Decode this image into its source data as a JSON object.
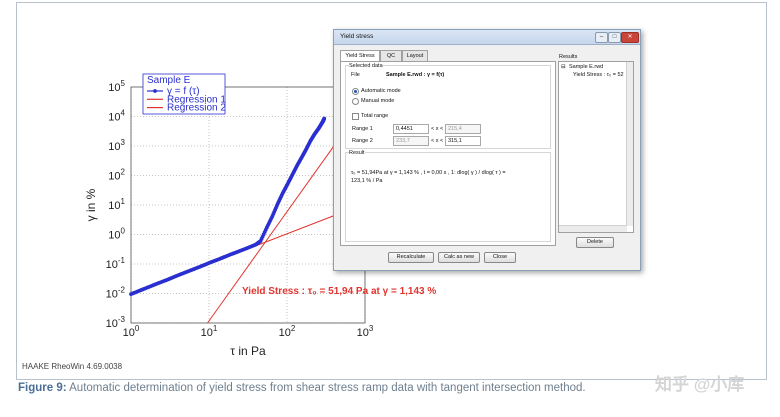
{
  "figure": {
    "caption_label": "Figure 9:",
    "caption_text": "Automatic determination of yield stress from shear stress ramp data with tangent intersection method.",
    "software": "HAAKE RheoWin 4.69.0038",
    "watermark": "知乎 @小库"
  },
  "chart_data": {
    "type": "line",
    "xlabel": "τ in Pa",
    "ylabel": "γ in %",
    "x_scale": "log",
    "y_scale": "log",
    "xlim": [
      1,
      1000
    ],
    "ylim": [
      0.001,
      100000
    ],
    "x_ticks": [
      {
        "value": 1,
        "base": "10",
        "exp": "0"
      },
      {
        "value": 10,
        "base": "10",
        "exp": "1"
      },
      {
        "value": 100,
        "base": "10",
        "exp": "2"
      },
      {
        "value": 1000,
        "base": "10",
        "exp": "3"
      }
    ],
    "y_ticks": [
      {
        "value": 0.001,
        "base": "10",
        "exp": "-3"
      },
      {
        "value": 0.01,
        "base": "10",
        "exp": "-2"
      },
      {
        "value": 0.1,
        "base": "10",
        "exp": "-1"
      },
      {
        "value": 1,
        "base": "10",
        "exp": "0"
      },
      {
        "value": 10,
        "base": "10",
        "exp": "1"
      },
      {
        "value": 100,
        "base": "10",
        "exp": "2"
      },
      {
        "value": 1000,
        "base": "10",
        "exp": "3"
      },
      {
        "value": 10000,
        "base": "10",
        "exp": "4"
      },
      {
        "value": 100000,
        "base": "10",
        "exp": "5"
      }
    ],
    "grid": true,
    "legend_title": "Sample E",
    "legend_position": "top-left",
    "series": [
      {
        "name": "γ = f (τ)",
        "color": "#2a2fd0",
        "marker": "circle",
        "x": [
          1.0,
          1.3,
          1.7,
          2.2,
          2.9,
          3.7,
          4.8,
          6.3,
          8.2,
          10.6,
          13.8,
          18.0,
          23.4,
          30.4,
          39.5,
          45.8,
          55,
          65,
          76,
          88,
          102,
          118,
          135,
          155,
          175,
          200,
          225,
          252,
          275,
          290,
          300
        ],
        "y": [
          0.0095,
          0.0126,
          0.0167,
          0.022,
          0.029,
          0.038,
          0.05,
          0.066,
          0.087,
          0.115,
          0.15,
          0.2,
          0.26,
          0.34,
          0.45,
          0.6,
          1.7,
          4.2,
          11,
          25,
          52,
          110,
          220,
          420,
          750,
          1500,
          2500,
          3800,
          5500,
          7000,
          8500
        ]
      },
      {
        "name": "Regression 1",
        "color": "#e3342f",
        "x": [
          1,
          500
        ],
        "y": [
          0.0095,
          5.47
        ]
      },
      {
        "name": "Regression 2",
        "color": "#e3342f",
        "x": [
          9.5,
          500
        ],
        "y": [
          0.00097,
          2300
        ]
      }
    ],
    "annotation": {
      "text": "Yield Stress : τ₀  = 51,94 Pa at  γ = 1,143 %",
      "color": "#e3342f"
    }
  },
  "dialog": {
    "title": "Yield stress",
    "window_buttons": [
      "–",
      "□",
      "✕"
    ],
    "tabs": [
      "Yield Stress",
      "QC",
      "Layout"
    ],
    "selected_data_label": "Selected data",
    "file_label": "File",
    "file_value": "Sample E.rwd :  γ = f(τ)",
    "automatic_mode": "Automatic mode",
    "manual_mode": "Manual mode",
    "total_range": "Total range",
    "range1_label": "Range 1",
    "range1_min": "0,4451",
    "range1_max": "215,4",
    "range2_label": "Range 2",
    "range2_min": "233,7",
    "range2_max": "315,1",
    "range_op": "< x <",
    "result_label": "Result",
    "result_text_1": "τ₀  = 51,94Pa at  γ = 1,143 % , t = 0,00 s ,  1: dlog( γ ) / dlog( τ ) =",
    "result_text_2": "123,1 % / Pa",
    "results_title": "Results",
    "results_tree_root": "Sample E.rwd",
    "results_tree_item": "Yield Stress : τ₀ = 52",
    "buttons": {
      "recalculate": "Recalculate",
      "calc_as_new": "Calc as new",
      "close": "Close",
      "delete": "Delete"
    }
  }
}
